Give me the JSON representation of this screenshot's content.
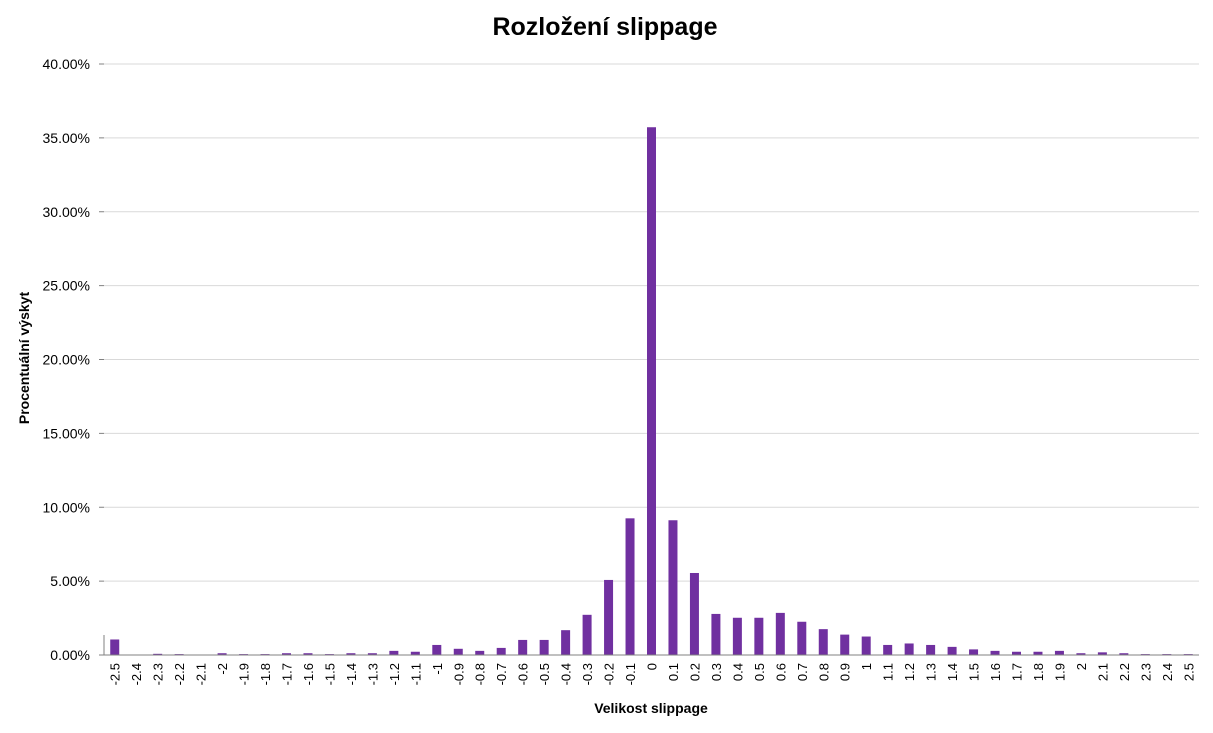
{
  "chart_data": {
    "type": "bar",
    "title": "Rozložení slippage",
    "xlabel": "Velikost slippage",
    "ylabel": "Procentuální výskyt",
    "ylim": [
      0,
      0.4
    ],
    "yticks": [
      "0.00%",
      "5.00%",
      "10.00%",
      "15.00%",
      "20.00%",
      "25.00%",
      "30.00%",
      "35.00%",
      "40.00%"
    ],
    "grid": true,
    "bar_color": "#7030a0",
    "categories": [
      "-2.5",
      "-2.4",
      "-2.3",
      "-2.2",
      "-2.1",
      "-2",
      "-1.9",
      "-1.8",
      "-1.7",
      "-1.6",
      "-1.5",
      "-1.4",
      "-1.3",
      "-1.2",
      "-1.1",
      "-1",
      "-0.9",
      "-0.8",
      "-0.7",
      "-0.6",
      "-0.5",
      "-0.4",
      "-0.3",
      "-0.2",
      "-0.1",
      "0",
      "0.1",
      "0.2",
      "0.3",
      "0.4",
      "0.5",
      "0.6",
      "0.7",
      "0.8",
      "0.9",
      "1",
      "1.1",
      "1.2",
      "1.3",
      "1.4",
      "1.5",
      "1.6",
      "1.7",
      "1.8",
      "1.9",
      "2",
      "2.1",
      "2.2",
      "2.3",
      "2.4",
      "2.5"
    ],
    "values": [
      0.0105,
      0.0,
      0.0008,
      0.0006,
      0.0,
      0.0012,
      0.0006,
      0.0006,
      0.0012,
      0.0012,
      0.0006,
      0.0012,
      0.0012,
      0.0028,
      0.0022,
      0.0068,
      0.0042,
      0.0028,
      0.0048,
      0.0102,
      0.0102,
      0.0168,
      0.0272,
      0.0508,
      0.0925,
      0.3572,
      0.0912,
      0.0555,
      0.0278,
      0.0252,
      0.0252,
      0.0285,
      0.0225,
      0.0175,
      0.0138,
      0.0125,
      0.0068,
      0.0078,
      0.0068,
      0.0055,
      0.0038,
      0.0028,
      0.0022,
      0.0022,
      0.0028,
      0.0012,
      0.0018,
      0.0012,
      0.0006,
      0.0006,
      0.0006
    ]
  }
}
